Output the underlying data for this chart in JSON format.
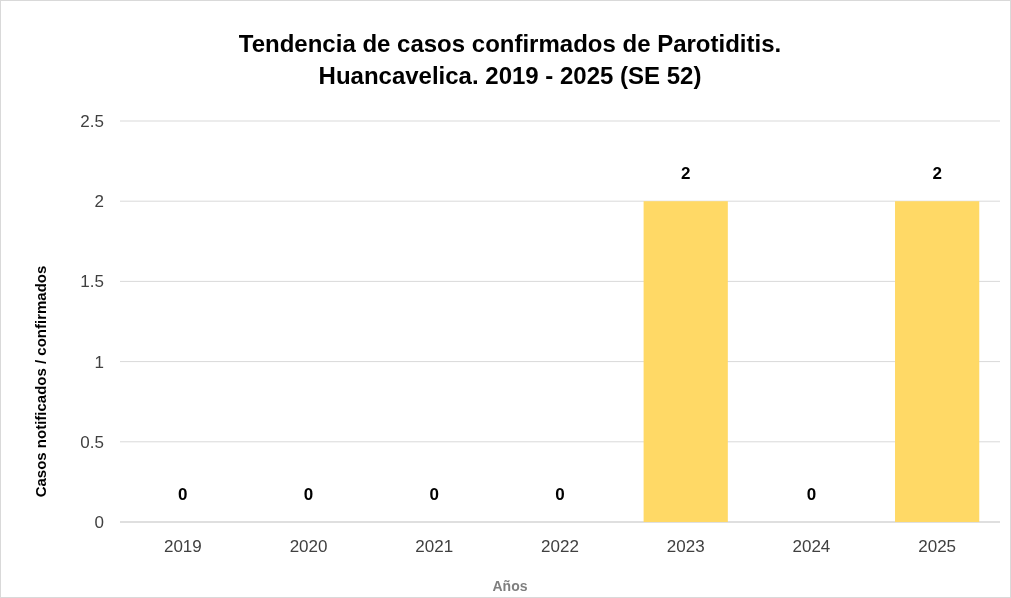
{
  "chart_data": {
    "type": "bar",
    "title": "Tendencia de casos confirmados de Parotiditis. Huancavelica. 2019 - 2025 (SE 52)",
    "xlabel": "Años",
    "ylabel": "Casos notificados / confirmados",
    "categories": [
      "2019",
      "2020",
      "2021",
      "2022",
      "2023",
      "2024",
      "2025"
    ],
    "values": [
      0,
      0,
      0,
      0,
      2,
      0,
      2
    ],
    "color": "#ffd966",
    "ylim": [
      0,
      2.5
    ],
    "yticks": [
      0,
      0.5,
      1,
      1.5,
      2,
      2.5
    ],
    "grid": "y",
    "data_labels": true
  }
}
